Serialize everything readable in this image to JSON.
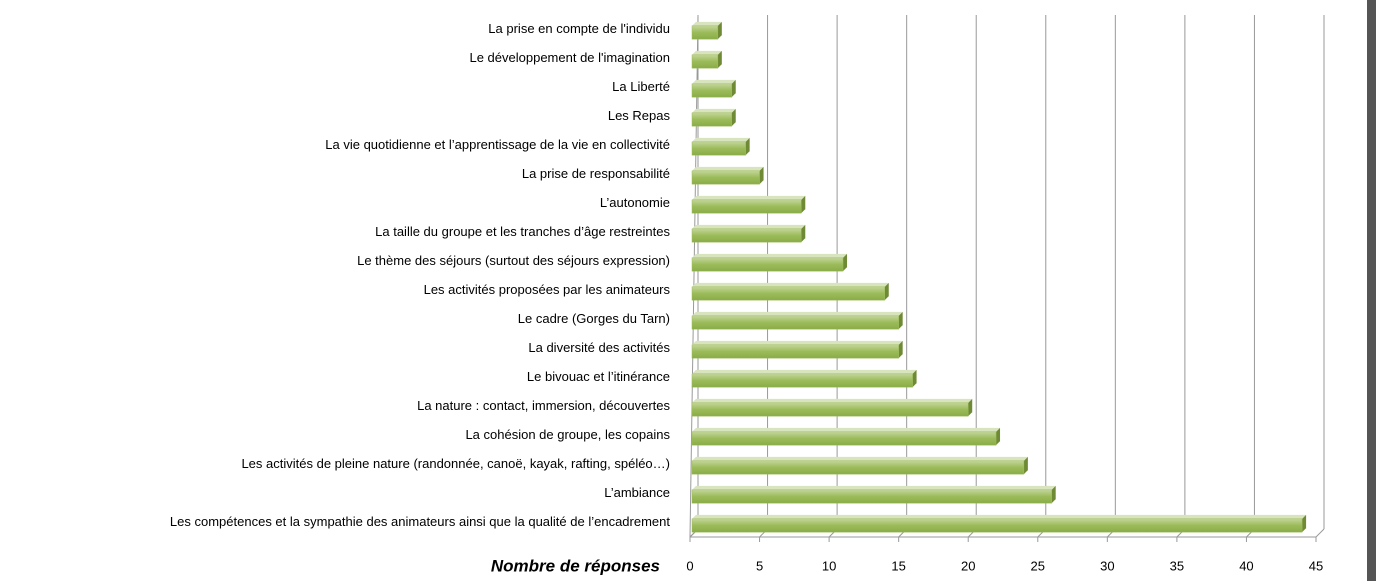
{
  "chart_data": {
    "type": "bar",
    "orientation": "horizontal",
    "x_label": "Nombre de réponses",
    "categories": [
      "La prise en compte de l'individu",
      "Le développement de l'imagination",
      "La Liberté",
      "Les Repas",
      "La vie quotidienne et l’apprentissage de la vie en collectivité",
      "La prise de responsabilité",
      "L’autonomie",
      "La taille du groupe et les tranches d’âge restreintes",
      "Le thème des séjours (surtout des séjours expression)",
      "Les activités proposées par les animateurs",
      "Le cadre (Gorges du Tarn)",
      "La diversité des activités",
      "Le bivouac et l’itinérance",
      "La nature : contact, immersion, découvertes",
      "La cohésion de groupe, les copains",
      "Les activités de pleine nature (randonnée, canoë, kayak, rafting, spéléo…)",
      "L’ambiance",
      "Les compétences et la sympathie des animateurs ainsi que la qualité de l’encadrement"
    ],
    "values": [
      2,
      2,
      3,
      3,
      4,
      5,
      8,
      8,
      11,
      14,
      15,
      15,
      16,
      20,
      22,
      24,
      26,
      44
    ],
    "color": "#9bbb59",
    "xlim": [
      0,
      45
    ],
    "xticks": [
      0,
      5,
      10,
      15,
      20,
      25,
      30,
      35,
      40,
      45
    ],
    "grid": true
  }
}
